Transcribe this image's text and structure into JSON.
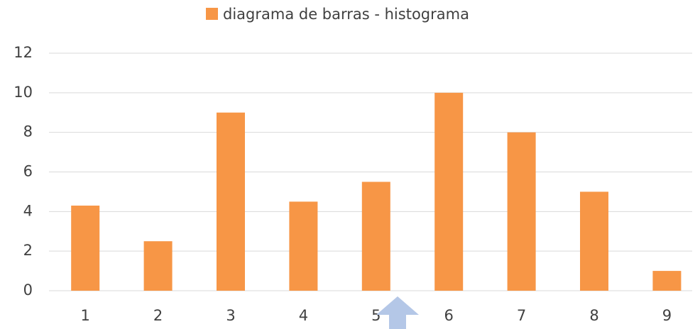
{
  "chart_data": {
    "type": "bar",
    "legend": "diagrama de barras - histograma",
    "categories": [
      "1",
      "2",
      "3",
      "4",
      "5",
      "6",
      "7",
      "8",
      "9"
    ],
    "values": [
      4.3,
      2.5,
      9,
      4.5,
      5.5,
      10,
      8,
      5,
      1
    ],
    "color": "#f79646",
    "ylim": [
      0,
      12
    ],
    "yticks": [
      0,
      2,
      4,
      6,
      8,
      10,
      12
    ],
    "grid": true
  }
}
